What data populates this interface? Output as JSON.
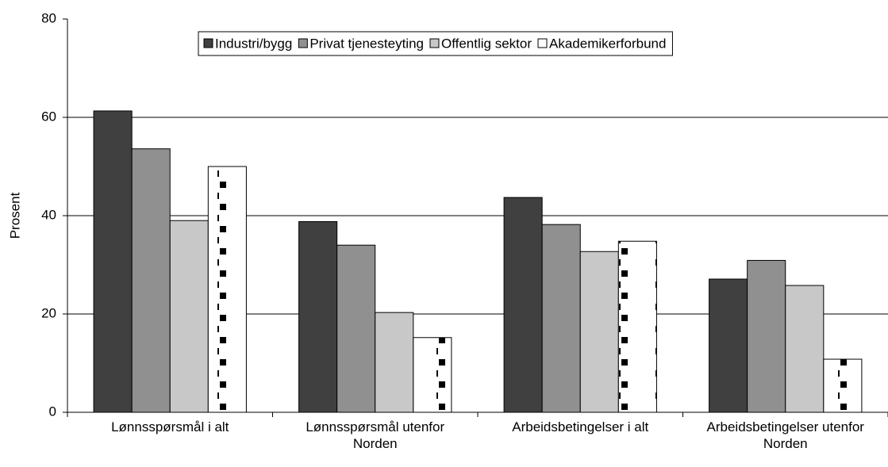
{
  "chart_data": {
    "type": "bar",
    "y_label": "Prosent",
    "categories": [
      "Lønnsspørsmål i alt",
      "Lønnsspørsmål utenfor Norden",
      "Arbeidsbetingelser i alt",
      "Arbeidsbetingelser utenfor Norden"
    ],
    "series": [
      {
        "name": "Industri/bygg",
        "color": "#404040",
        "values": [
          61.3,
          38.8,
          43.7,
          27.1
        ]
      },
      {
        "name": "Privat tjenesteyting",
        "color": "#909090",
        "values": [
          53.6,
          34.0,
          38.2,
          30.9
        ]
      },
      {
        "name": "Offentlig sektor",
        "color": "#c8c8c8",
        "values": [
          39.0,
          20.3,
          32.7,
          25.8
        ]
      },
      {
        "name": "Akademikerforbund",
        "color": "#ffffff",
        "pattern": "dots",
        "values": [
          50.0,
          15.2,
          34.8,
          10.8
        ]
      }
    ],
    "ylim": [
      0,
      80
    ],
    "yticks": [
      0,
      20,
      40,
      60,
      80
    ],
    "grid": true,
    "legend": "top"
  }
}
